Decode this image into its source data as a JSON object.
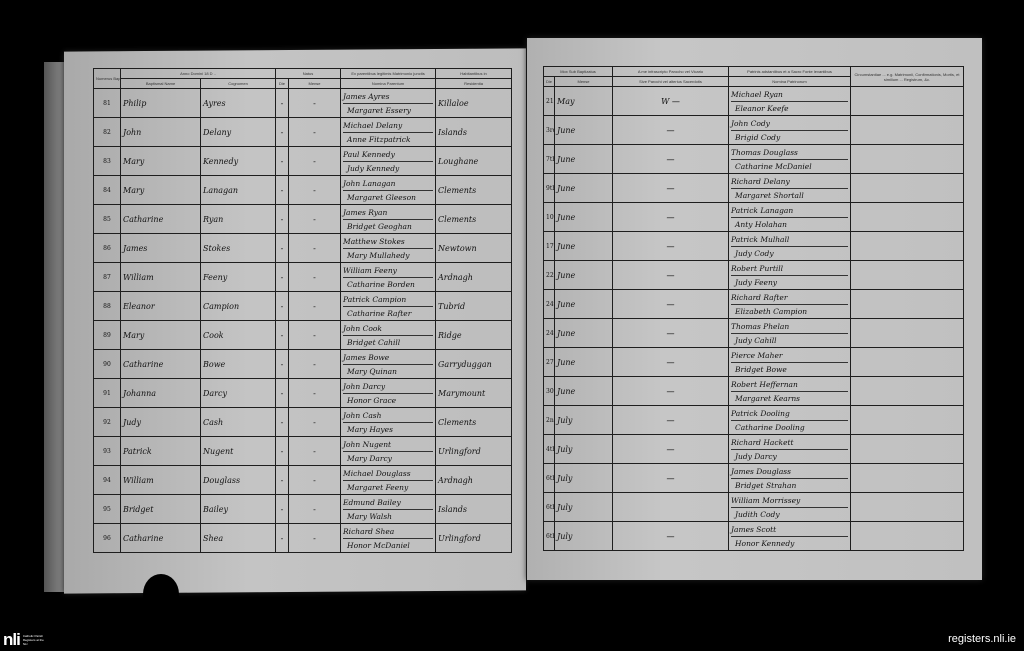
{
  "left_page": {
    "headers": {
      "number": "Numerus Baptizati",
      "year": "Anno Domini 18 D ..",
      "baptismal_name": "Baptismal Name",
      "cognomen": "Cognomen",
      "natus": "Natus",
      "die": "Die",
      "mense": "Mense",
      "parents": "Ex parentibus legitimis Matrimonio junctis",
      "parents_sub": "Nomina Parentum",
      "residence": "Habitantibus in",
      "residence_sub": "Residentia"
    },
    "rows": [
      {
        "no": "81",
        "name": "Philip",
        "surname": "Ayres",
        "die": "-",
        "mense": "-",
        "father": "James Ayres",
        "mother": "Margaret Essery",
        "residence": "Killaloe"
      },
      {
        "no": "82",
        "name": "John",
        "surname": "Delany",
        "die": "-",
        "mense": "-",
        "father": "Michael Delany",
        "mother": "Anne Fitzpatrick",
        "residence": "Islands"
      },
      {
        "no": "83",
        "name": "Mary",
        "surname": "Kennedy",
        "die": "-",
        "mense": "-",
        "father": "Paul Kennedy",
        "mother": "Judy Kennedy",
        "residence": "Loughane"
      },
      {
        "no": "84",
        "name": "Mary",
        "surname": "Lanagan",
        "die": "-",
        "mense": "-",
        "father": "John Lanagan",
        "mother": "Margaret Gleeson",
        "residence": "Clements"
      },
      {
        "no": "85",
        "name": "Catharine",
        "surname": "Ryan",
        "die": "-",
        "mense": "-",
        "father": "James Ryan",
        "mother": "Bridget Geoghan",
        "residence": "Clements"
      },
      {
        "no": "86",
        "name": "James",
        "surname": "Stokes",
        "die": "-",
        "mense": "-",
        "father": "Matthew Stokes",
        "mother": "Mary Mullahedy",
        "residence": "Newtown"
      },
      {
        "no": "87",
        "name": "William",
        "surname": "Feeny",
        "die": "-",
        "mense": "-",
        "father": "William Feeny",
        "mother": "Catharine Borden",
        "residence": "Ardnagh"
      },
      {
        "no": "88",
        "name": "Eleanor",
        "surname": "Campion",
        "die": "-",
        "mense": "-",
        "father": "Patrick Campion",
        "mother": "Catharine Rafter",
        "residence": "Tubrid"
      },
      {
        "no": "89",
        "name": "Mary",
        "surname": "Cook",
        "die": "-",
        "mense": "-",
        "father": "John Cook",
        "mother": "Bridget Cahill",
        "residence": "Ridge"
      },
      {
        "no": "90",
        "name": "Catharine",
        "surname": "Bowe",
        "die": "-",
        "mense": "-",
        "father": "James Bowe",
        "mother": "Mary Quinan",
        "residence": "Garryduggan"
      },
      {
        "no": "91",
        "name": "Johanna",
        "surname": "Darcy",
        "die": "-",
        "mense": "-",
        "father": "John Darcy",
        "mother": "Honor Grace",
        "residence": "Marymount"
      },
      {
        "no": "92",
        "name": "Judy",
        "surname": "Cash",
        "die": "-",
        "mense": "-",
        "father": "John Cash",
        "mother": "Mary Hayes",
        "residence": "Clements"
      },
      {
        "no": "93",
        "name": "Patrick",
        "surname": "Nugent",
        "die": "-",
        "mense": "-",
        "father": "John Nugent",
        "mother": "Mary Darcy",
        "residence": "Urlingford"
      },
      {
        "no": "94",
        "name": "William",
        "surname": "Douglass",
        "die": "-",
        "mense": "-",
        "father": "Michael Douglass",
        "mother": "Margaret Feeny",
        "residence": "Ardnagh"
      },
      {
        "no": "95",
        "name": "Bridget",
        "surname": "Bailey",
        "die": "-",
        "mense": "-",
        "father": "Edmund Bailey",
        "mother": "Mary Walsh",
        "residence": "Islands"
      },
      {
        "no": "96",
        "name": "Catharine",
        "surname": "Shea",
        "die": "-",
        "mense": "-",
        "father": "Richard Shea",
        "mother": "Honor McDaniel",
        "residence": "Urlingford"
      }
    ]
  },
  "right_page": {
    "headers": {
      "baptized": "Mox Sub Baptizatus",
      "die": "Die",
      "mense": "Mense",
      "minister": "A me infrascripto Parocho vel Vicario",
      "minister_sub": "Sive Parochi vel alterius Sacerdotis",
      "sponsors": "Patrinis adstantibus et a Sacro Fonte levantibus",
      "sponsors_sub": "Nomina Patrinorum",
      "notes": "Circumstantiae ... e.g. Matrimonii, Confirmationis, Mortis, et similium ... Registrum, &c."
    },
    "rows": [
      {
        "die": "21st",
        "mense": "May",
        "minister": "W —",
        "sponsor1": "Michael Ryan",
        "sponsor2": "Eleanor Keefe"
      },
      {
        "die": "3rd",
        "mense": "June",
        "minister": "—",
        "sponsor1": "John Cody",
        "sponsor2": "Brigid Cody"
      },
      {
        "die": "7th",
        "mense": "June",
        "minister": "—",
        "sponsor1": "Thomas Douglass",
        "sponsor2": "Catharine McDaniel"
      },
      {
        "die": "9th",
        "mense": "June",
        "minister": "—",
        "sponsor1": "Richard Delany",
        "sponsor2": "Margaret Shortall"
      },
      {
        "die": "10th",
        "mense": "June",
        "minister": "—",
        "sponsor1": "Patrick Lanagan",
        "sponsor2": "Anty Holahan"
      },
      {
        "die": "17th",
        "mense": "June",
        "minister": "—",
        "sponsor1": "Patrick Mulhall",
        "sponsor2": "Judy Cody"
      },
      {
        "die": "22nd",
        "mense": "June",
        "minister": "—",
        "sponsor1": "Robert Purtill",
        "sponsor2": "Judy Feeny"
      },
      {
        "die": "24th",
        "mense": "June",
        "minister": "—",
        "sponsor1": "Richard Rafter",
        "sponsor2": "Elizabeth Campion"
      },
      {
        "die": "24th",
        "mense": "June",
        "minister": "—",
        "sponsor1": "Thomas Phelan",
        "sponsor2": "Judy Cahill"
      },
      {
        "die": "27th",
        "mense": "June",
        "minister": "—",
        "sponsor1": "Pierce Maher",
        "sponsor2": "Bridget Bowe"
      },
      {
        "die": "30th",
        "mense": "June",
        "minister": "—",
        "sponsor1": "Robert Heffernan",
        "sponsor2": "Margaret Kearns"
      },
      {
        "die": "2nd",
        "mense": "July",
        "minister": "—",
        "sponsor1": "Patrick Dooling",
        "sponsor2": "Catharine Dooling"
      },
      {
        "die": "4th",
        "mense": "July",
        "minister": "—",
        "sponsor1": "Richard Hackett",
        "sponsor2": "Judy Darcy"
      },
      {
        "die": "6th",
        "mense": "July",
        "minister": "—",
        "sponsor1": "James Douglass",
        "sponsor2": "Bridget Strahan"
      },
      {
        "die": "6th",
        "mense": "July",
        "minister": "",
        "sponsor1": "William Morrissey",
        "sponsor2": "Judith Cody"
      },
      {
        "die": "6th",
        "mense": "July",
        "minister": "—",
        "sponsor1": "James Scott",
        "sponsor2": "Honor Kennedy"
      }
    ]
  },
  "footer": {
    "logo_mark": "nli",
    "logo_text": "Catholic Parish Registers at the NLI",
    "site": "registers.nli.ie"
  }
}
